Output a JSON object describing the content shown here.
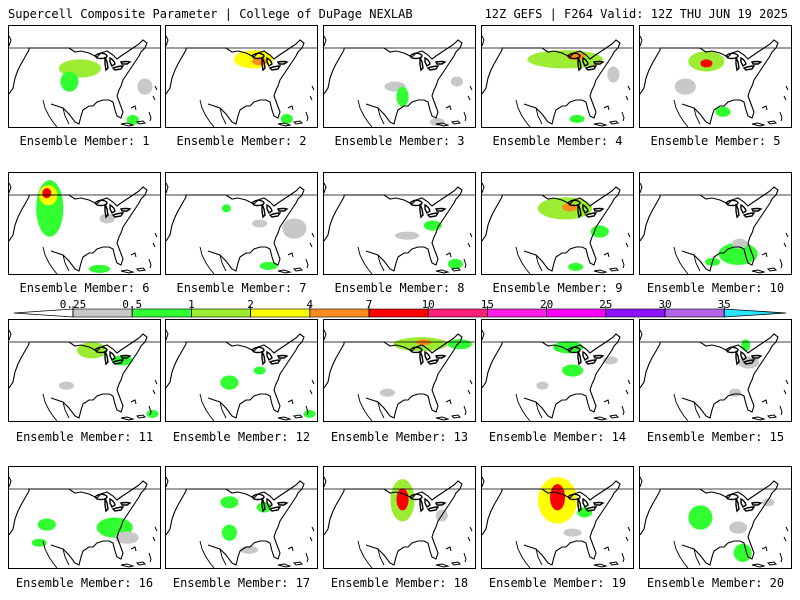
{
  "header": {
    "left": "Supercell Composite Parameter | College of DuPage NEXLAB",
    "right": "12Z GEFS | F264 Valid: 12Z THU JUN 19 2025"
  },
  "colorbar": {
    "levels": [
      "0.25",
      "0.5",
      "1",
      "2",
      "4",
      "7",
      "10",
      "15",
      "20",
      "25",
      "30",
      "35"
    ],
    "colors": [
      "#c8c8c8",
      "#32ff32",
      "#9bec32",
      "#ffff00",
      "#ff8c1e",
      "#ff0000",
      "#ff1e78",
      "#ff1ee6",
      "#ff00ff",
      "#8c14ff",
      "#b464e6",
      "#28e6ff"
    ]
  },
  "members": [
    {
      "label": "Ensemble Member: 1",
      "blobs": [
        [
          0.47,
          0.42,
          0.14,
          0.09,
          2
        ],
        [
          0.4,
          0.55,
          0.06,
          0.1,
          1
        ],
        [
          0.9,
          0.6,
          0.05,
          0.08,
          0
        ],
        [
          0.82,
          0.93,
          0.04,
          0.05,
          1
        ]
      ]
    },
    {
      "label": "Ensemble Member: 2",
      "blobs": [
        [
          0.58,
          0.33,
          0.13,
          0.09,
          3
        ],
        [
          0.62,
          0.35,
          0.05,
          0.04,
          4
        ],
        [
          0.8,
          0.92,
          0.04,
          0.05,
          1
        ]
      ]
    },
    {
      "label": "Ensemble Member: 3",
      "blobs": [
        [
          0.47,
          0.6,
          0.07,
          0.05,
          0
        ],
        [
          0.52,
          0.7,
          0.04,
          0.1,
          1
        ],
        [
          0.75,
          0.95,
          0.05,
          0.04,
          0
        ],
        [
          0.88,
          0.55,
          0.04,
          0.05,
          0
        ]
      ]
    },
    {
      "label": "Ensemble Member: 4",
      "blobs": [
        [
          0.55,
          0.33,
          0.25,
          0.09,
          2
        ],
        [
          0.62,
          0.3,
          0.06,
          0.04,
          4
        ],
        [
          0.87,
          0.48,
          0.04,
          0.08,
          0
        ],
        [
          0.63,
          0.92,
          0.05,
          0.04,
          1
        ]
      ]
    },
    {
      "label": "Ensemble Member: 5",
      "blobs": [
        [
          0.44,
          0.35,
          0.12,
          0.1,
          2
        ],
        [
          0.44,
          0.37,
          0.04,
          0.04,
          5
        ],
        [
          0.3,
          0.6,
          0.07,
          0.08,
          0
        ],
        [
          0.55,
          0.85,
          0.05,
          0.05,
          1
        ]
      ]
    },
    {
      "label": "Ensemble Member: 6",
      "blobs": [
        [
          0.27,
          0.35,
          0.09,
          0.28,
          1
        ],
        [
          0.26,
          0.22,
          0.06,
          0.1,
          3
        ],
        [
          0.25,
          0.2,
          0.03,
          0.05,
          5
        ],
        [
          0.65,
          0.45,
          0.05,
          0.05,
          0
        ],
        [
          0.6,
          0.95,
          0.07,
          0.04,
          1
        ]
      ]
    },
    {
      "label": "Ensemble Member: 7",
      "blobs": [
        [
          0.4,
          0.35,
          0.03,
          0.04,
          1
        ],
        [
          0.62,
          0.5,
          0.05,
          0.04,
          0
        ],
        [
          0.85,
          0.55,
          0.08,
          0.1,
          0
        ],
        [
          0.68,
          0.92,
          0.06,
          0.04,
          1
        ]
      ]
    },
    {
      "label": "Ensemble Member: 8",
      "blobs": [
        [
          0.72,
          0.52,
          0.06,
          0.05,
          1
        ],
        [
          0.55,
          0.62,
          0.08,
          0.04,
          0
        ],
        [
          0.87,
          0.9,
          0.05,
          0.05,
          1
        ]
      ]
    },
    {
      "label": "Ensemble Member: 9",
      "blobs": [
        [
          0.55,
          0.35,
          0.18,
          0.11,
          2
        ],
        [
          0.58,
          0.34,
          0.05,
          0.04,
          4
        ],
        [
          0.78,
          0.58,
          0.06,
          0.06,
          1
        ],
        [
          0.62,
          0.93,
          0.05,
          0.04,
          1
        ]
      ]
    },
    {
      "label": "Ensemble Member: 10",
      "blobs": [
        [
          0.65,
          0.8,
          0.13,
          0.11,
          1
        ],
        [
          0.66,
          0.7,
          0.05,
          0.05,
          0
        ],
        [
          0.48,
          0.88,
          0.05,
          0.04,
          1
        ]
      ]
    },
    {
      "label": "Ensemble Member: 11",
      "blobs": [
        [
          0.55,
          0.3,
          0.1,
          0.08,
          2
        ],
        [
          0.75,
          0.4,
          0.07,
          0.05,
          1
        ],
        [
          0.38,
          0.65,
          0.05,
          0.04,
          0
        ],
        [
          0.95,
          0.93,
          0.04,
          0.04,
          1
        ]
      ]
    },
    {
      "label": "Ensemble Member: 12",
      "blobs": [
        [
          0.42,
          0.62,
          0.06,
          0.07,
          1
        ],
        [
          0.62,
          0.5,
          0.04,
          0.04,
          1
        ],
        [
          0.95,
          0.93,
          0.04,
          0.04,
          1
        ]
      ]
    },
    {
      "label": "Ensemble Member: 13",
      "blobs": [
        [
          0.64,
          0.24,
          0.18,
          0.07,
          2
        ],
        [
          0.66,
          0.22,
          0.05,
          0.03,
          4
        ],
        [
          0.9,
          0.24,
          0.08,
          0.05,
          1
        ],
        [
          0.42,
          0.72,
          0.05,
          0.04,
          0
        ]
      ]
    },
    {
      "label": "Ensemble Member: 14",
      "blobs": [
        [
          0.57,
          0.27,
          0.1,
          0.06,
          1
        ],
        [
          0.6,
          0.5,
          0.07,
          0.06,
          1
        ],
        [
          0.85,
          0.4,
          0.05,
          0.04,
          0
        ],
        [
          0.4,
          0.65,
          0.04,
          0.04,
          0
        ]
      ]
    },
    {
      "label": "Ensemble Member: 15",
      "blobs": [
        [
          0.72,
          0.42,
          0.07,
          0.06,
          0
        ],
        [
          0.7,
          0.25,
          0.03,
          0.06,
          1
        ],
        [
          0.63,
          0.72,
          0.04,
          0.04,
          0
        ]
      ]
    },
    {
      "label": "Ensemble Member: 16",
      "blobs": [
        [
          0.25,
          0.57,
          0.06,
          0.06,
          1
        ],
        [
          0.7,
          0.6,
          0.12,
          0.1,
          1
        ],
        [
          0.78,
          0.7,
          0.08,
          0.06,
          0
        ],
        [
          0.2,
          0.75,
          0.05,
          0.04,
          1
        ]
      ]
    },
    {
      "label": "Ensemble Member: 17",
      "blobs": [
        [
          0.42,
          0.35,
          0.06,
          0.06,
          1
        ],
        [
          0.65,
          0.4,
          0.05,
          0.05,
          1
        ],
        [
          0.42,
          0.65,
          0.05,
          0.08,
          1
        ],
        [
          0.55,
          0.82,
          0.06,
          0.04,
          0
        ]
      ]
    },
    {
      "label": "Ensemble Member: 18",
      "blobs": [
        [
          0.52,
          0.33,
          0.08,
          0.21,
          2
        ],
        [
          0.52,
          0.32,
          0.04,
          0.11,
          5
        ],
        [
          0.78,
          0.48,
          0.04,
          0.06,
          0
        ]
      ]
    },
    {
      "label": "Ensemble Member: 19",
      "blobs": [
        [
          0.5,
          0.33,
          0.13,
          0.23,
          3
        ],
        [
          0.5,
          0.3,
          0.05,
          0.13,
          5
        ],
        [
          0.68,
          0.45,
          0.05,
          0.05,
          1
        ],
        [
          0.6,
          0.65,
          0.06,
          0.04,
          0
        ]
      ]
    },
    {
      "label": "Ensemble Member: 20",
      "blobs": [
        [
          0.4,
          0.5,
          0.08,
          0.12,
          1
        ],
        [
          0.65,
          0.6,
          0.06,
          0.06,
          0
        ],
        [
          0.68,
          0.85,
          0.06,
          0.09,
          1
        ],
        [
          0.85,
          0.35,
          0.04,
          0.04,
          0
        ]
      ]
    }
  ]
}
